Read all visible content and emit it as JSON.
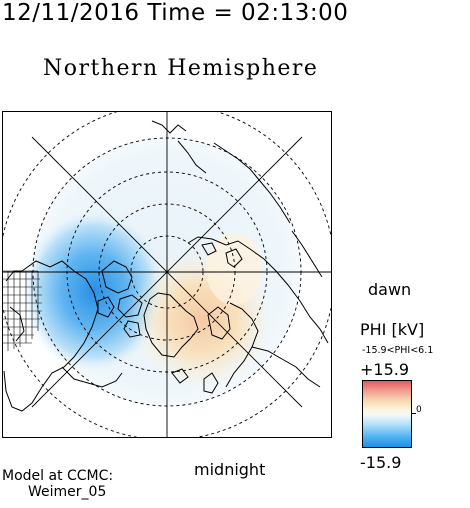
{
  "header": {
    "timestamp": "12/11/2016 Time = 02:13:00",
    "title": "Northern Hemisphere"
  },
  "map": {
    "projection": "polar",
    "orientation": {
      "right": "dawn",
      "bottom": "midnight"
    },
    "potential_pattern": {
      "negative_cell_side": "dusk",
      "positive_cell_side": "dawn"
    }
  },
  "labels": {
    "dawn": "dawn",
    "midnight": "midnight",
    "model_line1": "Model at CCMC:",
    "model_line2": "Weimer_05"
  },
  "colorbar": {
    "quantity_label": "PHI [kV]",
    "range_text": "-15.9<PHI<6.1",
    "max_label": "+15.9",
    "zero_label": "0",
    "min_label": "-15.9",
    "colors": [
      "#1e8fe8",
      "#53b5f2",
      "#a9dbf7",
      "#f2f8fb",
      "#fcf6e0",
      "#f8dfb8",
      "#f2ab9a",
      "#e25a5f"
    ]
  }
}
